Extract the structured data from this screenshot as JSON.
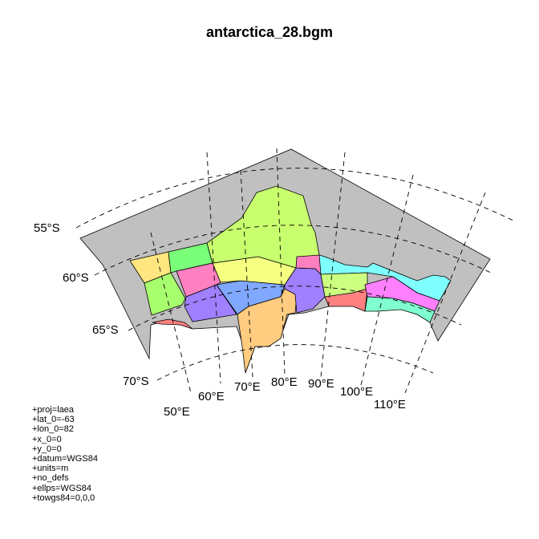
{
  "title": "antarctica_28.bgm",
  "colors": {
    "land": "#c0c0c0",
    "graticule": "#000000",
    "boxes": [
      "#ffe680",
      "#7aff7a",
      "#a8ff6e",
      "#ff80c0",
      "#a080ff",
      "#80a8ff",
      "#f5ff80",
      "#ffcc80",
      "#c8ff6e",
      "#80ffff",
      "#ff8080",
      "#80ffd0",
      "#ff80ff",
      "#ccff80"
    ]
  },
  "lat_labels": [
    "55°S",
    "60°S",
    "65°S",
    "70°S"
  ],
  "lon_labels": [
    "50°E",
    "60°E",
    "70°E",
    "80°E",
    "90°E",
    "100°E",
    "110°E"
  ],
  "projection": [
    "+proj=laea",
    "+lat_0=-63",
    "+lon_0=82",
    "+x_0=0",
    "+y_0=0",
    "+datum=WGS84",
    "+units=m",
    "+no_defs",
    "+ellps=WGS84",
    "+towgs84=0,0,0"
  ]
}
